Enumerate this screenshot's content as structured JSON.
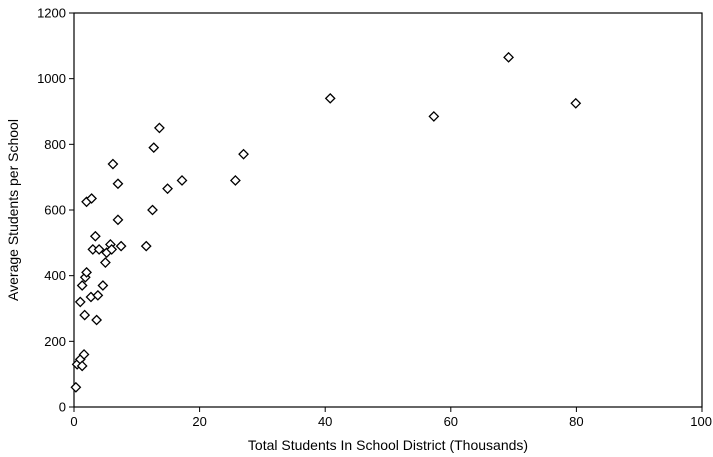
{
  "chart_data": {
    "type": "scatter",
    "title": "",
    "xlabel": "Total Students In School District (Thousands)",
    "ylabel": "Average Students per School",
    "xlim": [
      0,
      100
    ],
    "ylim": [
      0,
      1200
    ],
    "grid": false,
    "marker": "diamond",
    "x_ticks": [
      "0",
      "20",
      "40",
      "60",
      "80",
      "100"
    ],
    "y_ticks": [
      "0",
      "200",
      "400",
      "600",
      "800",
      "1000",
      "1200"
    ],
    "series": [
      {
        "points": [
          [
            0.3,
            60
          ],
          [
            0.5,
            130
          ],
          [
            1.0,
            145
          ],
          [
            1.3,
            125
          ],
          [
            1.6,
            160
          ],
          [
            1.0,
            320
          ],
          [
            1.3,
            370
          ],
          [
            1.7,
            280
          ],
          [
            1.8,
            395
          ],
          [
            2.0,
            410
          ],
          [
            2.0,
            625
          ],
          [
            2.8,
            635
          ],
          [
            2.7,
            335
          ],
          [
            3.0,
            480
          ],
          [
            3.4,
            520
          ],
          [
            3.6,
            265
          ],
          [
            3.8,
            340
          ],
          [
            4.0,
            480
          ],
          [
            4.6,
            370
          ],
          [
            5.0,
            440
          ],
          [
            5.2,
            470
          ],
          [
            5.8,
            495
          ],
          [
            6.0,
            480
          ],
          [
            6.2,
            740
          ],
          [
            7.0,
            680
          ],
          [
            7.0,
            570
          ],
          [
            7.5,
            490
          ],
          [
            11.5,
            490
          ],
          [
            12.5,
            600
          ],
          [
            12.7,
            790
          ],
          [
            13.6,
            850
          ],
          [
            14.9,
            665
          ],
          [
            17.2,
            690
          ],
          [
            25.7,
            690
          ],
          [
            27.0,
            770
          ],
          [
            40.8,
            940
          ],
          [
            57.3,
            885
          ],
          [
            69.2,
            1065
          ],
          [
            79.9,
            925
          ]
        ]
      }
    ]
  }
}
